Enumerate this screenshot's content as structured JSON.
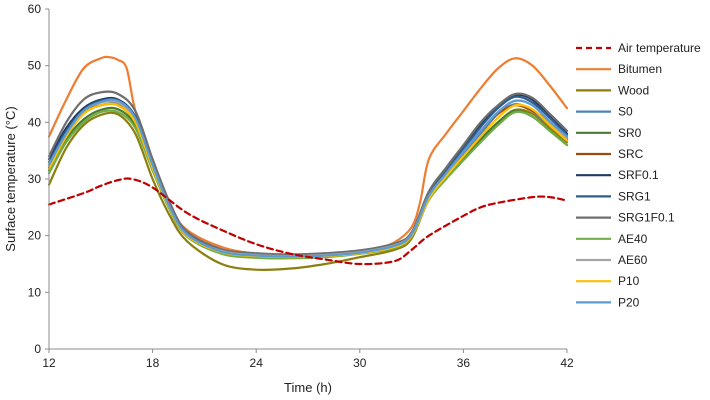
{
  "chart_data": {
    "type": "line",
    "xlabel": "Time (h)",
    "ylabel": "Surface temperature (°C)",
    "xlim": [
      12,
      42
    ],
    "ylim": [
      0,
      60
    ],
    "xticks": [
      12,
      18,
      24,
      30,
      36,
      42
    ],
    "yticks": [
      0,
      10,
      20,
      30,
      40,
      50,
      60
    ],
    "grid": false,
    "legend_position": "right",
    "series": [
      {
        "name": "Air temperature",
        "color": "#c00000",
        "dashed": true,
        "x": [
          12,
          14,
          15,
          16,
          16.8,
          18,
          20,
          22,
          24,
          26,
          28,
          30,
          32,
          33,
          34,
          36,
          37,
          38,
          40,
          41,
          42
        ],
        "y": [
          25.5,
          27.5,
          28.8,
          29.8,
          30.0,
          28.5,
          24.0,
          21.0,
          18.5,
          16.8,
          15.8,
          15.0,
          15.5,
          17.5,
          20.0,
          23.5,
          25.0,
          25.8,
          26.8,
          26.8,
          26.2
        ]
      },
      {
        "name": "Bitumen",
        "color": "#ed7d31",
        "dashed": false,
        "x": [
          12,
          13,
          14,
          15,
          15.5,
          16,
          16.5,
          17,
          18,
          19,
          20,
          22,
          24,
          26,
          28,
          30,
          31,
          32,
          33,
          33.5,
          34,
          35,
          36,
          37,
          38,
          39,
          40,
          41,
          42
        ],
        "y": [
          37.5,
          44.0,
          49.5,
          51.3,
          51.5,
          51.0,
          49.5,
          42.0,
          32.0,
          25.0,
          21.0,
          18.0,
          16.8,
          16.5,
          16.8,
          17.2,
          17.8,
          18.8,
          21.5,
          26.0,
          33.5,
          38.0,
          42.0,
          46.0,
          49.5,
          51.3,
          50.0,
          46.5,
          42.5
        ]
      },
      {
        "name": "Wood",
        "color": "#8b7d0e",
        "dashed": false,
        "x": [
          12,
          13,
          14,
          15,
          16,
          17,
          18,
          19,
          20,
          22,
          24,
          26,
          28,
          30,
          32,
          33,
          34,
          35,
          36,
          37,
          38,
          39,
          40,
          41,
          42
        ],
        "y": [
          29.0,
          35.5,
          39.5,
          41.3,
          41.4,
          38.0,
          30.0,
          23.5,
          19.0,
          15.0,
          14.0,
          14.2,
          15.0,
          16.2,
          17.5,
          19.5,
          26.5,
          30.5,
          33.5,
          37.0,
          40.0,
          42.2,
          41.5,
          39.0,
          36.5
        ]
      },
      {
        "name": "S0",
        "color": "#4f81bd",
        "dashed": false,
        "x": [
          12,
          13,
          14,
          15,
          16,
          17,
          18,
          19,
          20,
          22,
          24,
          26,
          28,
          30,
          32,
          33,
          34,
          35,
          36,
          37,
          38,
          39,
          40,
          41,
          42
        ],
        "y": [
          32.0,
          37.5,
          41.5,
          43.0,
          43.2,
          40.5,
          32.5,
          25.0,
          20.0,
          17.2,
          16.5,
          16.3,
          16.5,
          17.0,
          18.0,
          20.0,
          27.0,
          31.0,
          34.5,
          38.0,
          41.5,
          43.2,
          42.0,
          39.5,
          37.0
        ]
      },
      {
        "name": "SR0",
        "color": "#4a7a2a",
        "dashed": false,
        "x": [
          12,
          13,
          14,
          15,
          16,
          17,
          18,
          19,
          20,
          22,
          24,
          26,
          28,
          30,
          32,
          33,
          34,
          35,
          36,
          37,
          38,
          39,
          40,
          41,
          42
        ],
        "y": [
          31.5,
          37.0,
          40.5,
          42.2,
          42.3,
          39.5,
          32.0,
          25.0,
          20.0,
          17.0,
          16.3,
          16.2,
          16.5,
          17.0,
          18.0,
          20.0,
          26.5,
          30.5,
          33.8,
          37.0,
          40.0,
          42.0,
          41.0,
          38.5,
          36.0
        ]
      },
      {
        "name": "SRC",
        "color": "#9c4a0e",
        "dashed": false,
        "x": [
          12,
          13,
          14,
          15,
          16,
          17,
          18,
          19,
          20,
          22,
          24,
          26,
          28,
          30,
          32,
          33,
          34,
          35,
          36,
          37,
          38,
          39,
          40,
          41,
          42
        ],
        "y": [
          32.0,
          38.0,
          41.8,
          43.0,
          43.0,
          40.0,
          32.3,
          25.0,
          20.2,
          17.3,
          16.6,
          16.4,
          16.6,
          17.1,
          18.2,
          20.2,
          27.0,
          31.0,
          35.0,
          38.5,
          41.5,
          43.0,
          42.0,
          40.0,
          37.0
        ]
      },
      {
        "name": "SRF0.1",
        "color": "#1f3864",
        "dashed": false,
        "x": [
          12,
          13,
          14,
          15,
          16,
          17,
          18,
          19,
          20,
          22,
          24,
          26,
          28,
          30,
          32,
          33,
          34,
          35,
          36,
          37,
          38,
          39,
          40,
          41,
          42
        ],
        "y": [
          33.5,
          39.0,
          42.5,
          44.0,
          44.0,
          41.0,
          33.0,
          25.5,
          20.5,
          17.5,
          16.8,
          16.6,
          16.8,
          17.3,
          18.5,
          20.5,
          27.5,
          31.8,
          35.5,
          39.5,
          42.8,
          44.8,
          44.0,
          41.0,
          38.0
        ]
      },
      {
        "name": "SRG1",
        "color": "#2e5e8e",
        "dashed": false,
        "x": [
          12,
          13,
          14,
          15,
          16,
          17,
          18,
          19,
          20,
          22,
          24,
          26,
          28,
          30,
          32,
          33,
          34,
          35,
          36,
          37,
          38,
          39,
          40,
          41,
          42
        ],
        "y": [
          33.0,
          38.5,
          42.2,
          43.8,
          43.8,
          40.8,
          32.8,
          25.3,
          20.3,
          17.4,
          16.7,
          16.5,
          16.7,
          17.2,
          18.4,
          20.4,
          27.3,
          31.5,
          35.3,
          39.2,
          42.5,
          44.5,
          43.5,
          40.8,
          37.8
        ]
      },
      {
        "name": "SRG1F0.1",
        "color": "#6e6e6e",
        "dashed": false,
        "x": [
          12,
          13,
          14,
          15,
          16,
          17,
          18,
          19,
          20,
          22,
          24,
          26,
          28,
          30,
          32,
          33,
          34,
          35,
          36,
          37,
          38,
          39,
          40,
          41,
          42
        ],
        "y": [
          34.0,
          40.0,
          44.0,
          45.3,
          45.0,
          42.0,
          33.5,
          25.8,
          20.7,
          17.6,
          16.9,
          16.7,
          16.9,
          17.4,
          18.6,
          20.6,
          27.8,
          32.0,
          36.0,
          40.0,
          43.0,
          45.0,
          44.3,
          41.5,
          38.5
        ]
      },
      {
        "name": "AE40",
        "color": "#70ad47",
        "dashed": false,
        "x": [
          12,
          13,
          14,
          15,
          16,
          17,
          18,
          19,
          20,
          22,
          24,
          26,
          28,
          30,
          32,
          33,
          34,
          35,
          36,
          37,
          38,
          39,
          40,
          41,
          42
        ],
        "y": [
          31.0,
          36.5,
          40.0,
          41.8,
          41.8,
          39.0,
          31.5,
          24.5,
          19.8,
          16.8,
          16.1,
          16.0,
          16.2,
          16.8,
          17.8,
          19.8,
          26.3,
          30.0,
          33.3,
          36.5,
          39.5,
          41.8,
          41.0,
          38.5,
          36.0
        ]
      },
      {
        "name": "AE60",
        "color": "#a5a5a5",
        "dashed": false,
        "x": [
          12,
          13,
          14,
          15,
          16,
          17,
          18,
          19,
          20,
          22,
          24,
          26,
          28,
          30,
          32,
          33,
          34,
          35,
          36,
          37,
          38,
          39,
          40,
          41,
          42
        ],
        "y": [
          32.5,
          38.0,
          42.0,
          43.5,
          43.5,
          40.5,
          32.5,
          25.0,
          20.2,
          17.3,
          16.6,
          16.4,
          16.6,
          17.1,
          18.3,
          20.3,
          27.0,
          31.0,
          34.8,
          38.5,
          41.8,
          43.8,
          43.0,
          40.0,
          37.3
        ]
      },
      {
        "name": "P10",
        "color": "#ffc000",
        "dashed": false,
        "x": [
          12,
          13,
          14,
          15,
          16,
          17,
          18,
          19,
          20,
          22,
          24,
          26,
          28,
          30,
          32,
          33,
          34,
          35,
          36,
          37,
          38,
          39,
          40,
          41,
          42
        ],
        "y": [
          31.8,
          37.5,
          41.5,
          43.0,
          43.0,
          40.0,
          32.0,
          24.8,
          20.0,
          17.1,
          16.4,
          16.2,
          16.4,
          16.9,
          18.0,
          20.0,
          26.5,
          30.5,
          34.0,
          37.5,
          40.8,
          43.0,
          42.3,
          39.5,
          36.8
        ]
      },
      {
        "name": "P20",
        "color": "#5b9bd5",
        "dashed": false,
        "x": [
          12,
          13,
          14,
          15,
          16,
          17,
          18,
          19,
          20,
          22,
          24,
          26,
          28,
          30,
          32,
          33,
          34,
          35,
          36,
          37,
          38,
          39,
          40,
          41,
          42
        ],
        "y": [
          32.5,
          38.0,
          42.0,
          43.6,
          43.8,
          40.8,
          32.5,
          25.0,
          20.2,
          17.2,
          16.5,
          16.3,
          16.5,
          17.0,
          18.2,
          20.2,
          27.0,
          31.0,
          34.8,
          38.5,
          41.8,
          43.8,
          43.0,
          40.2,
          37.5
        ]
      }
    ]
  }
}
